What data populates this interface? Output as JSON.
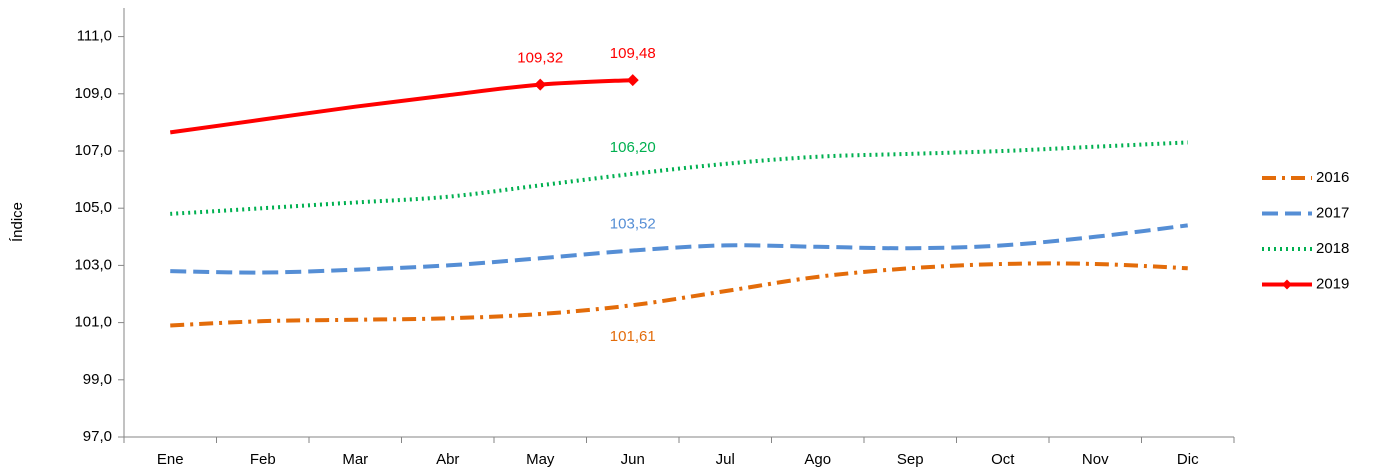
{
  "chart_data": {
    "type": "line",
    "y_label": "Índice",
    "categories": [
      "Ene",
      "Feb",
      "Mar",
      "Abr",
      "May",
      "Jun",
      "Jul",
      "Ago",
      "Sep",
      "Oct",
      "Nov",
      "Dic"
    ],
    "ylim": [
      97,
      112
    ],
    "yticks": [
      {
        "value": 97,
        "label": "97,0"
      },
      {
        "value": 99,
        "label": "99,0"
      },
      {
        "value": 101,
        "label": "101,0"
      },
      {
        "value": 103,
        "label": "103,0"
      },
      {
        "value": 105,
        "label": "105,0"
      },
      {
        "value": 107,
        "label": "107,0"
      },
      {
        "value": 109,
        "label": "109,0"
      },
      {
        "value": 111,
        "label": "111,0"
      }
    ],
    "legend": "right",
    "series": [
      {
        "name": "2016",
        "color": "#e36c0a",
        "style": "dashdot",
        "values": [
          100.9,
          101.05,
          101.1,
          101.15,
          101.3,
          101.61,
          102.1,
          102.6,
          102.9,
          103.05,
          103.05,
          102.9
        ],
        "value_labels": [
          null,
          null,
          null,
          null,
          null,
          "101,61",
          null,
          null,
          null,
          null,
          null,
          null
        ]
      },
      {
        "name": "2017",
        "color": "#558ed5",
        "style": "dash",
        "values": [
          102.8,
          102.75,
          102.85,
          103.0,
          103.25,
          103.52,
          103.7,
          103.65,
          103.6,
          103.7,
          104.0,
          104.4
        ],
        "value_labels": [
          null,
          null,
          null,
          null,
          null,
          "103,52",
          null,
          null,
          null,
          null,
          null,
          null
        ]
      },
      {
        "name": "2018",
        "color": "#00b050",
        "style": "dot",
        "values": [
          104.8,
          105.0,
          105.2,
          105.4,
          105.8,
          106.2,
          106.55,
          106.8,
          106.9,
          107.0,
          107.15,
          107.3
        ],
        "value_labels": [
          null,
          null,
          null,
          null,
          null,
          "106,20",
          null,
          null,
          null,
          null,
          null,
          null
        ]
      },
      {
        "name": "2019",
        "color": "#ff0000",
        "style": "solid",
        "marker": "diamond",
        "values": [
          107.65,
          108.1,
          108.55,
          108.95,
          109.32,
          109.48,
          null,
          null,
          null,
          null,
          null,
          null
        ],
        "value_labels": [
          null,
          null,
          null,
          null,
          "109,32",
          "109,48",
          null,
          null,
          null,
          null,
          null,
          null
        ]
      }
    ]
  }
}
